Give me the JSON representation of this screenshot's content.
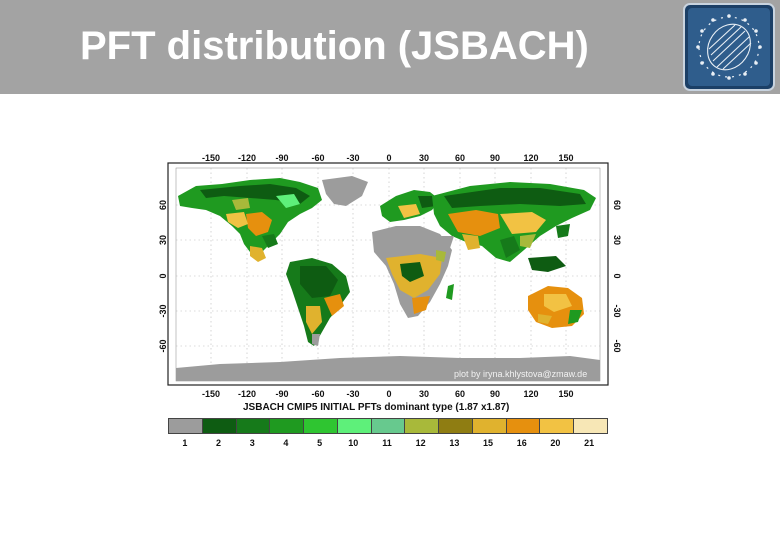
{
  "slide": {
    "title": "PFT distribution (JSBACH)"
  },
  "logo": {
    "icon": "globe-logo-icon"
  },
  "map": {
    "caption": "JSBACH CMIP5 INITIAL PFTs dominant type (1.87 x1.87)",
    "credit": "plot by iryna.khlystova@zmaw.de",
    "lon_ticks": [
      "-150",
      "-120",
      "-90",
      "-60",
      "-30",
      "0",
      "30",
      "60",
      "90",
      "120",
      "150"
    ],
    "lat_ticks": [
      "60",
      "30",
      "0",
      "-30",
      "-60"
    ],
    "colors": {
      "ocean": "#ffffff",
      "ice": "#9a9a9a"
    }
  },
  "legend": {
    "items": [
      {
        "label": "1",
        "color": "#9c9c9c"
      },
      {
        "label": "2",
        "color": "#0e5c12"
      },
      {
        "label": "3",
        "color": "#167a1a"
      },
      {
        "label": "4",
        "color": "#1f9a20"
      },
      {
        "label": "5",
        "color": "#2fc531"
      },
      {
        "label": "10",
        "color": "#5ef07a"
      },
      {
        "label": "11",
        "color": "#67c98e"
      },
      {
        "label": "12",
        "color": "#a8b93a"
      },
      {
        "label": "13",
        "color": "#8f7d12"
      },
      {
        "label": "15",
        "color": "#e0b22e"
      },
      {
        "label": "16",
        "color": "#e6900e"
      },
      {
        "label": "20",
        "color": "#f2c243"
      },
      {
        "label": "21",
        "color": "#f7e7b6"
      }
    ]
  }
}
